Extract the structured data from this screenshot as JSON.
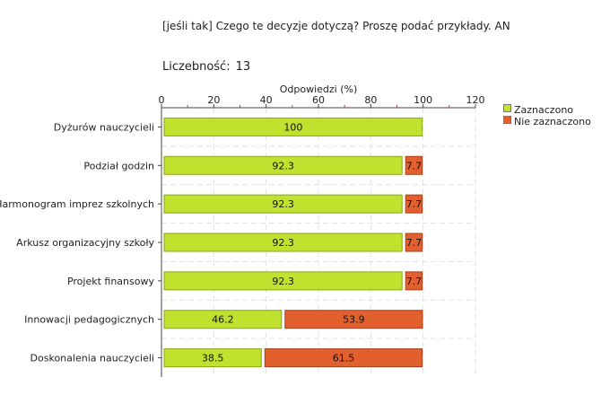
{
  "question": "[jeśli tak] Czego te decyzje dotyczą? Proszę podać przykłady. AN",
  "count": {
    "label": "Liczebność:",
    "value": "13"
  },
  "chart_data": {
    "type": "bar",
    "orientation": "horizontal",
    "stacked": true,
    "xlabel": "Odpowiedzi (%)",
    "xlim": [
      0,
      120
    ],
    "xticks": [
      0,
      20,
      40,
      60,
      80,
      100,
      120
    ],
    "grid": true,
    "legend_position": "top-right",
    "categories": [
      "Dyżurów nauczycieli",
      "Podział godzin",
      "Harmonogram imprez szkolnych",
      "Arkusz organizacyjny szkoły",
      "Projekt finansowy",
      "Innowacji pedagogicznych",
      "Doskonalenia nauczycieli"
    ],
    "series": [
      {
        "name": "Zaznaczono",
        "color": "#c0e12e",
        "values": [
          100,
          92.3,
          92.3,
          92.3,
          92.3,
          46.2,
          38.5
        ]
      },
      {
        "name": "Nie zaznaczono",
        "color": "#e2602e",
        "values": [
          0,
          7.7,
          7.7,
          7.7,
          7.7,
          53.9,
          61.5
        ]
      }
    ]
  }
}
